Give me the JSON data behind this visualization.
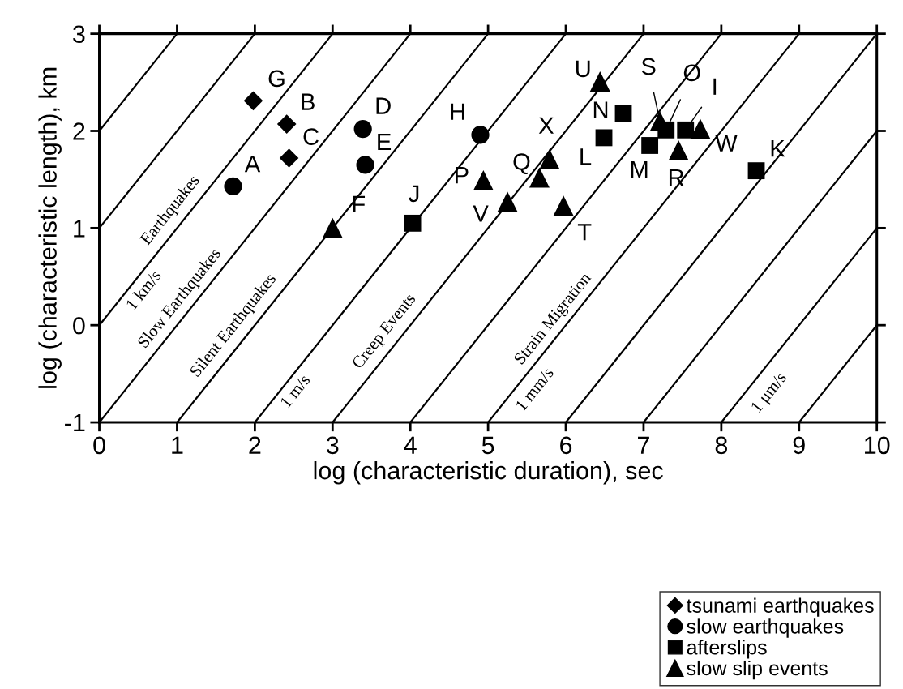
{
  "chart_data": {
    "type": "scatter",
    "xlabel": "log (characteristic duration), sec",
    "ylabel": "log (characteristic length), km",
    "xlim": [
      0,
      10
    ],
    "ylim": [
      -1,
      3
    ],
    "xticks": [
      0,
      1,
      2,
      3,
      4,
      5,
      6,
      7,
      8,
      9,
      10
    ],
    "yticks": [
      -1,
      0,
      1,
      2,
      3
    ],
    "grid": false,
    "legend": "bottom right",
    "series": [
      {
        "name": "tsunami earthquakes",
        "color": "#000000",
        "marker": "diamond",
        "x": [
          1.98,
          2.41,
          2.44
        ],
        "values": [
          2.31,
          2.07,
          1.72
        ]
      },
      {
        "name": "slow earthquakes",
        "color": "#000000",
        "marker": "circle",
        "x": [
          1.72,
          3.39,
          3.42,
          4.9
        ],
        "values": [
          1.43,
          2.02,
          1.65,
          1.96
        ]
      },
      {
        "name": "afterslips",
        "color": "#000000",
        "marker": "square",
        "x": [
          4.03,
          6.49,
          6.74,
          7.08,
          7.29,
          7.54,
          8.45
        ],
        "values": [
          1.05,
          1.93,
          2.18,
          1.85,
          2.01,
          2.01,
          1.59
        ]
      },
      {
        "name": "slow slip events",
        "color": "#000000",
        "marker": "triangle",
        "x": [
          3.0,
          4.94,
          5.25,
          5.66,
          5.79,
          5.97,
          6.44,
          7.21,
          7.45,
          7.73
        ],
        "values": [
          1.0,
          1.49,
          1.27,
          1.52,
          1.71,
          1.23,
          2.51,
          2.1,
          1.8,
          2.02
        ]
      },
      {
        "type": "line",
        "color": "#000000",
        "x": [
          0,
          1
        ],
        "values": [
          2,
          3
        ]
      },
      {
        "type": "line",
        "color": "#000000",
        "x": [
          0,
          2
        ],
        "values": [
          1,
          3
        ]
      },
      {
        "type": "line",
        "color": "#000000",
        "x": [
          0,
          3
        ],
        "values": [
          0,
          3
        ]
      },
      {
        "type": "line",
        "color": "#000000",
        "x": [
          0,
          4
        ],
        "values": [
          -1,
          3
        ]
      },
      {
        "type": "line",
        "color": "#000000",
        "x": [
          1,
          5
        ],
        "values": [
          -1,
          3
        ]
      },
      {
        "type": "line",
        "color": "#000000",
        "x": [
          2,
          6
        ],
        "values": [
          -1,
          3
        ]
      },
      {
        "type": "line",
        "color": "#000000",
        "x": [
          3,
          7
        ],
        "values": [
          -1,
          3
        ]
      },
      {
        "type": "line",
        "color": "#000000",
        "x": [
          4,
          8
        ],
        "values": [
          -1,
          3
        ]
      },
      {
        "type": "line",
        "color": "#000000",
        "x": [
          5,
          9
        ],
        "values": [
          -1,
          3
        ]
      },
      {
        "type": "line",
        "color": "#000000",
        "x": [
          6,
          10
        ],
        "values": [
          -1,
          3
        ]
      },
      {
        "type": "line",
        "color": "#000000",
        "x": [
          7,
          10
        ],
        "values": [
          -1,
          2
        ]
      },
      {
        "type": "line",
        "color": "#000000",
        "x": [
          8,
          10
        ],
        "values": [
          -1,
          1
        ]
      },
      {
        "type": "line",
        "color": "#000000",
        "x": [
          9,
          10
        ],
        "values": [
          -1,
          0
        ]
      }
    ],
    "annotations": [
      {
        "text": "A",
        "x": 1.72,
        "y": 1.43
      },
      {
        "text": "B",
        "x": 2.41,
        "y": 2.07
      },
      {
        "text": "C",
        "x": 2.44,
        "y": 1.72
      },
      {
        "text": "D",
        "x": 3.39,
        "y": 2.02
      },
      {
        "text": "E",
        "x": 3.42,
        "y": 1.65
      },
      {
        "text": "F",
        "x": 3.0,
        "y": 1.0
      },
      {
        "text": "G",
        "x": 1.98,
        "y": 2.31
      },
      {
        "text": "H",
        "x": 4.9,
        "y": 1.96
      },
      {
        "text": "I",
        "x": 7.54,
        "y": 2.01
      },
      {
        "text": "J",
        "x": 4.03,
        "y": 1.05
      },
      {
        "text": "K",
        "x": 8.45,
        "y": 1.59
      },
      {
        "text": "L",
        "x": 6.49,
        "y": 1.93
      },
      {
        "text": "M",
        "x": 7.08,
        "y": 1.85
      },
      {
        "text": "N",
        "x": 6.74,
        "y": 2.18
      },
      {
        "text": "O",
        "x": 7.29,
        "y": 2.01
      },
      {
        "text": "P",
        "x": 4.94,
        "y": 1.49
      },
      {
        "text": "Q",
        "x": 5.66,
        "y": 1.52
      },
      {
        "text": "R",
        "x": 7.45,
        "y": 1.8
      },
      {
        "text": "S",
        "x": 7.21,
        "y": 2.1
      },
      {
        "text": "T",
        "x": 5.97,
        "y": 1.23
      },
      {
        "text": "U",
        "x": 6.44,
        "y": 2.51
      },
      {
        "text": "V",
        "x": 5.25,
        "y": 1.27
      },
      {
        "text": "W",
        "x": 7.73,
        "y": 2.02
      },
      {
        "text": "X",
        "x": 5.79,
        "y": 1.71
      },
      "Earthquakes",
      "1 km/s",
      "Slow Earthquakes",
      "Silent Earthquakes",
      "1 m/s",
      "Creep Events",
      "Strain Migration",
      "1 mm/s",
      "1 μm/s"
    ]
  }
}
